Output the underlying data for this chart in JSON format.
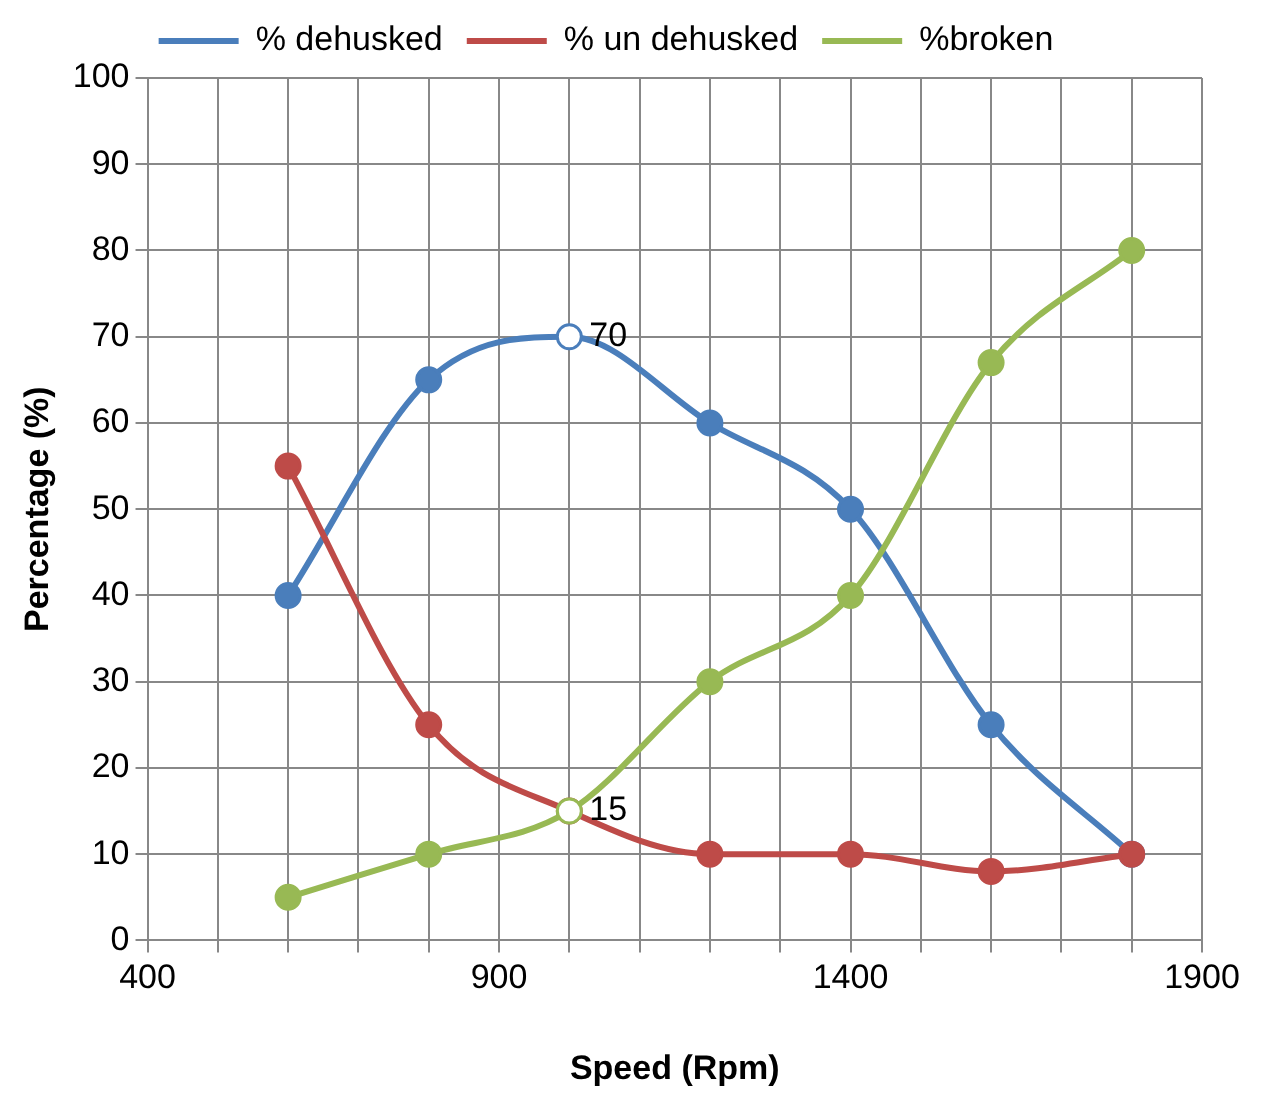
{
  "chart_data": {
    "type": "line",
    "xlabel": "Speed (Rpm)",
    "ylabel": "Percentage (%)",
    "x": [
      600,
      800,
      1000,
      1200,
      1400,
      1600,
      1800
    ],
    "series": [
      {
        "name": "% dehusked",
        "color": "#4a7ebb",
        "values": [
          40,
          65,
          70,
          60,
          50,
          25,
          10
        ],
        "value_labels": [
          null,
          null,
          "70",
          null,
          null,
          null,
          null
        ]
      },
      {
        "name": "% un dehusked",
        "color": "#be4b48",
        "values": [
          55,
          25,
          15,
          10,
          10,
          8,
          10
        ]
      },
      {
        "name": "%broken",
        "color": "#98b954",
        "values": [
          5,
          10,
          15,
          30,
          40,
          67,
          80
        ],
        "value_labels": [
          null,
          null,
          "15",
          null,
          null,
          null,
          null
        ]
      }
    ],
    "xlim": [
      400,
      1900
    ],
    "xticks": [
      400,
      {
        "value": 500,
        "label": null
      },
      {
        "value": 600,
        "label": null
      },
      {
        "value": 700,
        "label": null
      },
      {
        "value": 800,
        "label": null
      },
      900,
      {
        "value": 1000,
        "label": null
      },
      {
        "value": 1100,
        "label": null
      },
      {
        "value": 1200,
        "label": null
      },
      {
        "value": 1300,
        "label": null
      },
      1400,
      {
        "value": 1500,
        "label": null
      },
      {
        "value": 1600,
        "label": null
      },
      {
        "value": 1700,
        "label": null
      },
      {
        "value": 1800,
        "label": null
      },
      1900
    ],
    "ylim": [
      0,
      100
    ],
    "yticks": [
      0,
      10,
      20,
      30,
      40,
      50,
      60,
      70,
      80,
      90,
      100
    ],
    "grid": true,
    "legend": "top",
    "marker": "circle",
    "line_style": "solid"
  }
}
